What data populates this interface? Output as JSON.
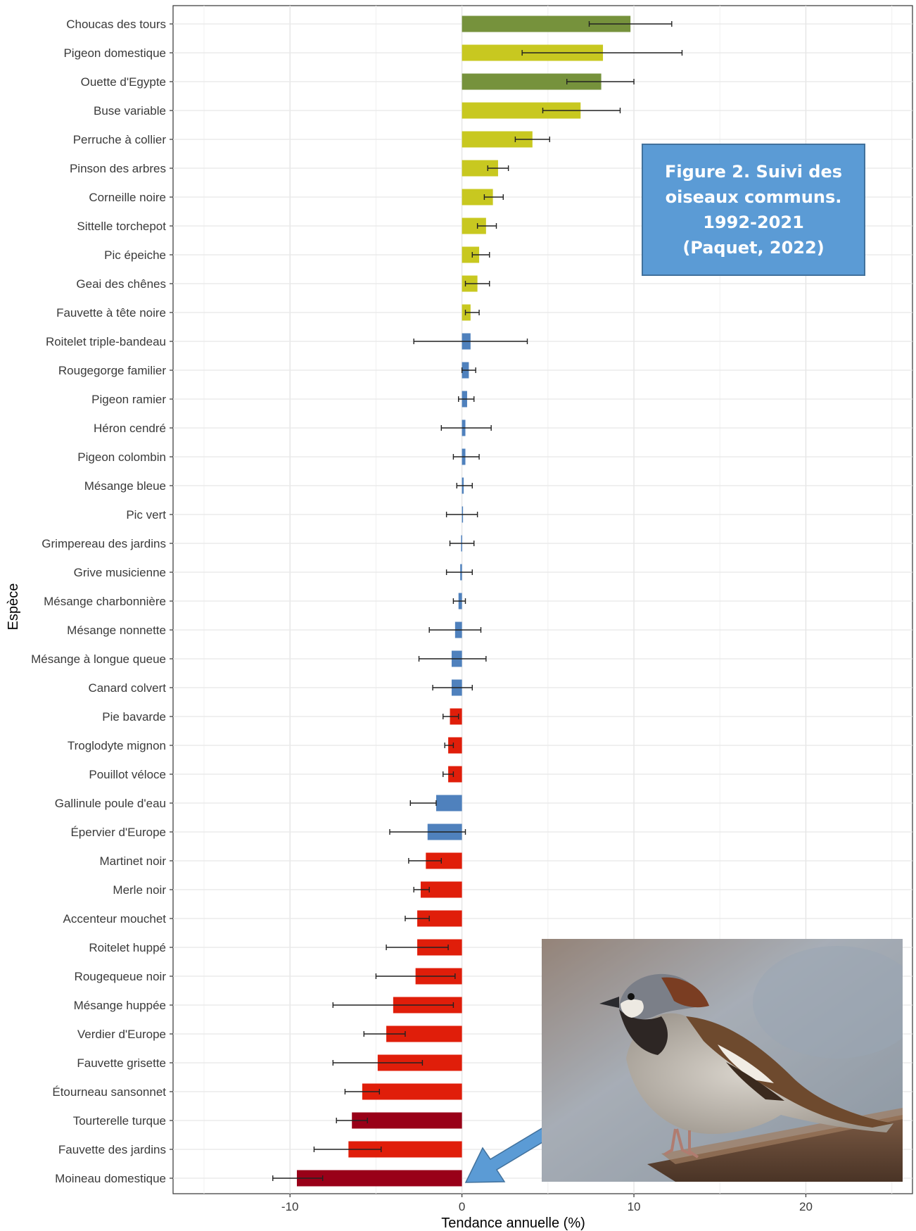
{
  "annotation": {
    "text": "Figure 2. Suivi des\noiseaux communs.\n1992-2021\n(Paquet, 2022)",
    "background": "#5b9bd5",
    "text_color": "#ffffff"
  },
  "photo": {
    "subject": "house-sparrow-photo"
  },
  "arrow": {
    "icon": "blue-arrow-icon",
    "color": "#5b9bd5"
  },
  "colors": {
    "strong_increase": "#76923c",
    "increase": "#c8c820",
    "stable": "#4f81bd",
    "decline": "#e01e0a",
    "strong_decline": "#990018"
  },
  "chart_data": {
    "type": "bar",
    "orientation": "horizontal",
    "xlabel": "Tendance annuelle (%)",
    "ylabel": "Espèce",
    "xlim": [
      -16.8,
      26.2
    ],
    "xticks": [
      -10,
      0,
      10,
      20
    ],
    "grid": true,
    "legend": "none",
    "categories": [
      "Choucas des tours",
      "Pigeon domestique",
      "Ouette d'Egypte",
      "Buse variable",
      "Perruche à collier",
      "Pinson des arbres",
      "Corneille noire",
      "Sittelle torchepot",
      "Pic épeiche",
      "Geai des chênes",
      "Fauvette à tête noire",
      "Roitelet triple-bandeau",
      "Rougegorge familier",
      "Pigeon ramier",
      "Héron cendré",
      "Pigeon colombin",
      "Mésange bleue",
      "Pic vert",
      "Grimpereau des jardins",
      "Grive musicienne",
      "Mésange charbonnière",
      "Mésange nonnette",
      "Mésange à longue queue",
      "Canard colvert",
      "Pie bavarde",
      "Troglodyte mignon",
      "Pouillot véloce",
      "Gallinule poule d'eau",
      "Épervier d'Europe",
      "Martinet noir",
      "Merle noir",
      "Accenteur mouchet",
      "Roitelet huppé",
      "Rougequeue noir",
      "Mésange huppée",
      "Verdier d'Europe",
      "Fauvette grisette",
      "Étourneau sansonnet",
      "Tourterelle turque",
      "Fauvette des jardins",
      "Moineau domestique"
    ],
    "values": [
      9.8,
      8.2,
      8.1,
      6.9,
      4.1,
      2.1,
      1.8,
      1.4,
      1.0,
      0.9,
      0.5,
      0.5,
      0.4,
      0.3,
      0.2,
      0.2,
      0.1,
      0.0,
      -0.05,
      -0.1,
      -0.2,
      -0.4,
      -0.6,
      -0.6,
      -0.7,
      -0.8,
      -0.8,
      -1.5,
      -2.0,
      -2.1,
      -2.4,
      -2.6,
      -2.6,
      -2.7,
      -4.0,
      -4.4,
      -4.9,
      -5.8,
      -6.4,
      -6.6,
      -9.6
    ],
    "ci_low": [
      7.4,
      3.5,
      6.1,
      4.7,
      3.1,
      1.5,
      1.3,
      0.9,
      0.6,
      0.2,
      0.2,
      -2.8,
      0.0,
      -0.2,
      -1.2,
      -0.5,
      -0.3,
      -0.9,
      -0.7,
      -0.9,
      -0.5,
      -1.9,
      -2.5,
      -1.7,
      -1.1,
      -1.0,
      -1.1,
      -3.0,
      -4.2,
      -3.1,
      -2.8,
      -3.3,
      -4.4,
      -5.0,
      -7.5,
      -5.7,
      -7.5,
      -6.8,
      -7.3,
      -8.6,
      -11.0
    ],
    "ci_high": [
      12.2,
      12.8,
      10.0,
      9.2,
      5.1,
      2.7,
      2.4,
      2.0,
      1.6,
      1.6,
      1.0,
      3.8,
      0.8,
      0.7,
      1.7,
      1.0,
      0.6,
      0.9,
      0.7,
      0.6,
      0.2,
      1.1,
      1.4,
      0.6,
      -0.2,
      -0.5,
      -0.5,
      -1.5,
      0.2,
      -1.2,
      -1.9,
      -1.9,
      -0.8,
      -0.4,
      -0.5,
      -3.3,
      -2.3,
      -4.8,
      -5.5,
      -4.7,
      -8.1
    ],
    "trend_class": [
      "strong_increase",
      "increase",
      "strong_increase",
      "increase",
      "increase",
      "increase",
      "increase",
      "increase",
      "increase",
      "increase",
      "increase",
      "stable",
      "stable",
      "stable",
      "stable",
      "stable",
      "stable",
      "stable",
      "stable",
      "stable",
      "stable",
      "stable",
      "stable",
      "stable",
      "decline",
      "decline",
      "decline",
      "stable",
      "stable",
      "decline",
      "decline",
      "decline",
      "decline",
      "decline",
      "decline",
      "decline",
      "decline",
      "decline",
      "strong_decline",
      "decline",
      "strong_decline"
    ]
  }
}
